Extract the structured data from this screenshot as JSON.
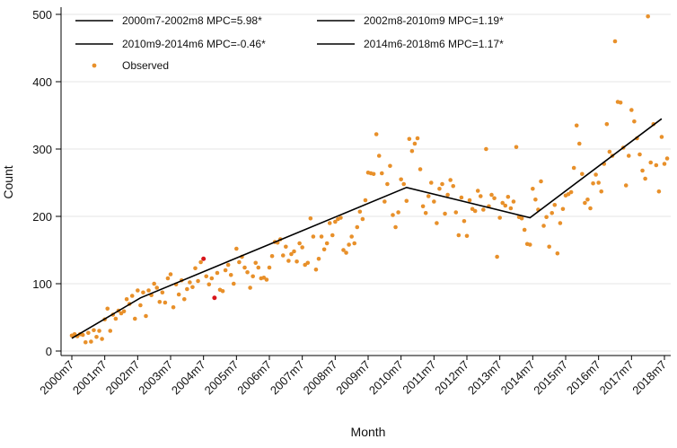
{
  "chart_data": {
    "type": "scatter",
    "xlabel": "Month",
    "ylabel": "Count",
    "ylim": [
      0,
      500
    ],
    "xlim": [
      "2000m7",
      "2018m7"
    ],
    "yticks": [
      0,
      100,
      200,
      300,
      400,
      500
    ],
    "xticks": [
      "2000m7",
      "2001m7",
      "2002m7",
      "2003m7",
      "2004m7",
      "2005m7",
      "2006m7",
      "2007m7",
      "2008m7",
      "2009m7",
      "2010m7",
      "2011m7",
      "2012m7",
      "2013m7",
      "2014m7",
      "2015m7",
      "2016m7",
      "2017m7",
      "2018m7"
    ],
    "grid": true,
    "legend_position": "top",
    "legend": [
      "2000m7-2002m8 MPC=5.98*",
      "2002m8-2010m9 MPC=1.19*",
      "2010m9-2014m6 MPC=-0.46*",
      "2014m6-2018m6 MPC=1.17*",
      "Observed"
    ],
    "colors": {
      "observed": "#e8902a",
      "outlier": "#d8151b",
      "trend": "#000000",
      "grid": "#e6e6e6"
    },
    "trend_line": {
      "x": [
        "2000m7",
        "2002m8",
        "2010m9",
        "2014m6",
        "2018m6"
      ],
      "y": [
        19,
        79,
        243,
        198,
        345
      ]
    },
    "outliers": {
      "x": [
        "2004m7",
        "2004m11"
      ],
      "y": [
        137,
        79
      ]
    },
    "observed_points": [
      [
        "2000m7",
        23
      ],
      [
        "2000m8",
        25
      ],
      [
        "2000m9",
        22
      ],
      [
        "2000m10",
        25
      ],
      [
        "2000m11",
        24
      ],
      [
        "2000m12",
        13
      ],
      [
        "2001m1",
        27
      ],
      [
        "2001m2",
        14
      ],
      [
        "2001m3",
        31
      ],
      [
        "2001m4",
        21
      ],
      [
        "2001m5",
        30
      ],
      [
        "2001m6",
        18
      ],
      [
        "2001m7",
        47
      ],
      [
        "2001m8",
        63
      ],
      [
        "2001m9",
        30
      ],
      [
        "2001m10",
        54
      ],
      [
        "2001m11",
        48
      ],
      [
        "2001m12",
        60
      ],
      [
        "2002m1",
        56
      ],
      [
        "2002m2",
        59
      ],
      [
        "2002m3",
        77
      ],
      [
        "2002m4",
        70
      ],
      [
        "2002m5",
        82
      ],
      [
        "2002m6",
        48
      ],
      [
        "2002m7",
        90
      ],
      [
        "2002m8",
        68
      ],
      [
        "2002m9",
        87
      ],
      [
        "2002m10",
        52
      ],
      [
        "2002m11",
        90
      ],
      [
        "2002m12",
        83
      ],
      [
        "2003m1",
        100
      ],
      [
        "2003m2",
        94
      ],
      [
        "2003m3",
        73
      ],
      [
        "2003m4",
        87
      ],
      [
        "2003m5",
        72
      ],
      [
        "2003m6",
        108
      ],
      [
        "2003m7",
        114
      ],
      [
        "2003m8",
        65
      ],
      [
        "2003m9",
        99
      ],
      [
        "2003m10",
        84
      ],
      [
        "2003m11",
        105
      ],
      [
        "2003m12",
        77
      ],
      [
        "2004m1",
        92
      ],
      [
        "2004m2",
        102
      ],
      [
        "2004m3",
        95
      ],
      [
        "2004m4",
        123
      ],
      [
        "2004m5",
        104
      ],
      [
        "2004m6",
        132
      ],
      [
        "2004m8",
        111
      ],
      [
        "2004m9",
        99
      ],
      [
        "2004m10",
        108
      ],
      [
        "2004m12",
        116
      ],
      [
        "2005m1",
        91
      ],
      [
        "2005m2",
        89
      ],
      [
        "2005m3",
        120
      ],
      [
        "2005m4",
        128
      ],
      [
        "2005m5",
        113
      ],
      [
        "2005m6",
        100
      ],
      [
        "2005m7",
        152
      ],
      [
        "2005m8",
        132
      ],
      [
        "2005m9",
        140
      ],
      [
        "2005m10",
        124
      ],
      [
        "2005m11",
        117
      ],
      [
        "2005m12",
        94
      ],
      [
        "2006m1",
        111
      ],
      [
        "2006m2",
        131
      ],
      [
        "2006m3",
        124
      ],
      [
        "2006m4",
        108
      ],
      [
        "2006m5",
        109
      ],
      [
        "2006m6",
        106
      ],
      [
        "2006m7",
        124
      ],
      [
        "2006m8",
        141
      ],
      [
        "2006m9",
        162
      ],
      [
        "2006m10",
        161
      ],
      [
        "2006m11",
        166
      ],
      [
        "2006m12",
        142
      ],
      [
        "2007m1",
        155
      ],
      [
        "2007m2",
        134
      ],
      [
        "2007m3",
        144
      ],
      [
        "2007m4",
        148
      ],
      [
        "2007m5",
        133
      ],
      [
        "2007m6",
        160
      ],
      [
        "2007m7",
        154
      ],
      [
        "2007m8",
        128
      ],
      [
        "2007m9",
        131
      ],
      [
        "2007m10",
        197
      ],
      [
        "2007m11",
        170
      ],
      [
        "2007m12",
        121
      ],
      [
        "2008m1",
        137
      ],
      [
        "2008m2",
        170
      ],
      [
        "2008m3",
        151
      ],
      [
        "2008m4",
        160
      ],
      [
        "2008m5",
        190
      ],
      [
        "2008m6",
        172
      ],
      [
        "2008m7",
        192
      ],
      [
        "2008m8",
        196
      ],
      [
        "2008m9",
        198
      ],
      [
        "2008m10",
        150
      ],
      [
        "2008m11",
        146
      ],
      [
        "2008m12",
        158
      ],
      [
        "2009m1",
        170
      ],
      [
        "2009m2",
        160
      ],
      [
        "2009m3",
        184
      ],
      [
        "2009m4",
        207
      ],
      [
        "2009m5",
        196
      ],
      [
        "2009m6",
        224
      ],
      [
        "2009m7",
        265
      ],
      [
        "2009m8",
        264
      ],
      [
        "2009m9",
        263
      ],
      [
        "2009m10",
        322
      ],
      [
        "2009m11",
        290
      ],
      [
        "2009m12",
        264
      ],
      [
        "2010m1",
        222
      ],
      [
        "2010m2",
        248
      ],
      [
        "2010m3",
        275
      ],
      [
        "2010m4",
        202
      ],
      [
        "2010m5",
        184
      ],
      [
        "2010m6",
        206
      ],
      [
        "2010m7",
        255
      ],
      [
        "2010m8",
        248
      ],
      [
        "2010m9",
        223
      ],
      [
        "2010m10",
        315
      ],
      [
        "2010m11",
        297
      ],
      [
        "2010m12",
        308
      ],
      [
        "2011m1",
        316
      ],
      [
        "2011m2",
        270
      ],
      [
        "2011m3",
        215
      ],
      [
        "2011m4",
        205
      ],
      [
        "2011m5",
        230
      ],
      [
        "2011m6",
        250
      ],
      [
        "2011m7",
        222
      ],
      [
        "2011m8",
        190
      ],
      [
        "2011m9",
        241
      ],
      [
        "2011m10",
        248
      ],
      [
        "2011m11",
        204
      ],
      [
        "2011m12",
        232
      ],
      [
        "2012m1",
        254
      ],
      [
        "2012m2",
        245
      ],
      [
        "2012m3",
        206
      ],
      [
        "2012m4",
        172
      ],
      [
        "2012m5",
        228
      ],
      [
        "2012m6",
        193
      ],
      [
        "2012m7",
        171
      ],
      [
        "2012m8",
        224
      ],
      [
        "2012m9",
        211
      ],
      [
        "2012m10",
        208
      ],
      [
        "2012m11",
        238
      ],
      [
        "2012m12",
        230
      ],
      [
        "2013m1",
        210
      ],
      [
        "2013m2",
        300
      ],
      [
        "2013m3",
        215
      ],
      [
        "2013m4",
        232
      ],
      [
        "2013m5",
        227
      ],
      [
        "2013m6",
        140
      ],
      [
        "2013m7",
        198
      ],
      [
        "2013m8",
        220
      ],
      [
        "2013m9",
        216
      ],
      [
        "2013m10",
        229
      ],
      [
        "2013m11",
        212
      ],
      [
        "2013m12",
        222
      ],
      [
        "2014m1",
        303
      ],
      [
        "2014m2",
        199
      ],
      [
        "2014m3",
        197
      ],
      [
        "2014m4",
        180
      ],
      [
        "2014m5",
        159
      ],
      [
        "2014m6",
        158
      ],
      [
        "2014m7",
        241
      ],
      [
        "2014m8",
        225
      ],
      [
        "2014m9",
        210
      ],
      [
        "2014m10",
        252
      ],
      [
        "2014m11",
        186
      ],
      [
        "2014m12",
        199
      ],
      [
        "2015m1",
        155
      ],
      [
        "2015m2",
        205
      ],
      [
        "2015m3",
        217
      ],
      [
        "2015m4",
        145
      ],
      [
        "2015m5",
        190
      ],
      [
        "2015m6",
        211
      ],
      [
        "2015m7",
        231
      ],
      [
        "2015m8",
        233
      ],
      [
        "2015m9",
        236
      ],
      [
        "2015m10",
        272
      ],
      [
        "2015m11",
        335
      ],
      [
        "2015m12",
        308
      ],
      [
        "2016m1",
        263
      ],
      [
        "2016m2",
        220
      ],
      [
        "2016m3",
        225
      ],
      [
        "2016m4",
        212
      ],
      [
        "2016m5",
        249
      ],
      [
        "2016m6",
        262
      ],
      [
        "2016m7",
        250
      ],
      [
        "2016m8",
        237
      ],
      [
        "2016m9",
        278
      ],
      [
        "2016m10",
        337
      ],
      [
        "2016m11",
        296
      ],
      [
        "2016m12",
        290
      ],
      [
        "2017m1",
        460
      ],
      [
        "2017m2",
        370
      ],
      [
        "2017m3",
        369
      ],
      [
        "2017m4",
        302
      ],
      [
        "2017m5",
        246
      ],
      [
        "2017m6",
        290
      ],
      [
        "2017m7",
        358
      ],
      [
        "2017m8",
        341
      ],
      [
        "2017m9",
        316
      ],
      [
        "2017m10",
        292
      ],
      [
        "2017m11",
        268
      ],
      [
        "2017m12",
        256
      ],
      [
        "2018m1",
        497
      ],
      [
        "2018m2",
        280
      ],
      [
        "2018m3",
        337
      ],
      [
        "2018m4",
        276
      ],
      [
        "2018m5",
        237
      ],
      [
        "2018m6",
        318
      ],
      [
        "2018m7",
        278
      ],
      [
        "2018m8",
        286
      ]
    ]
  }
}
